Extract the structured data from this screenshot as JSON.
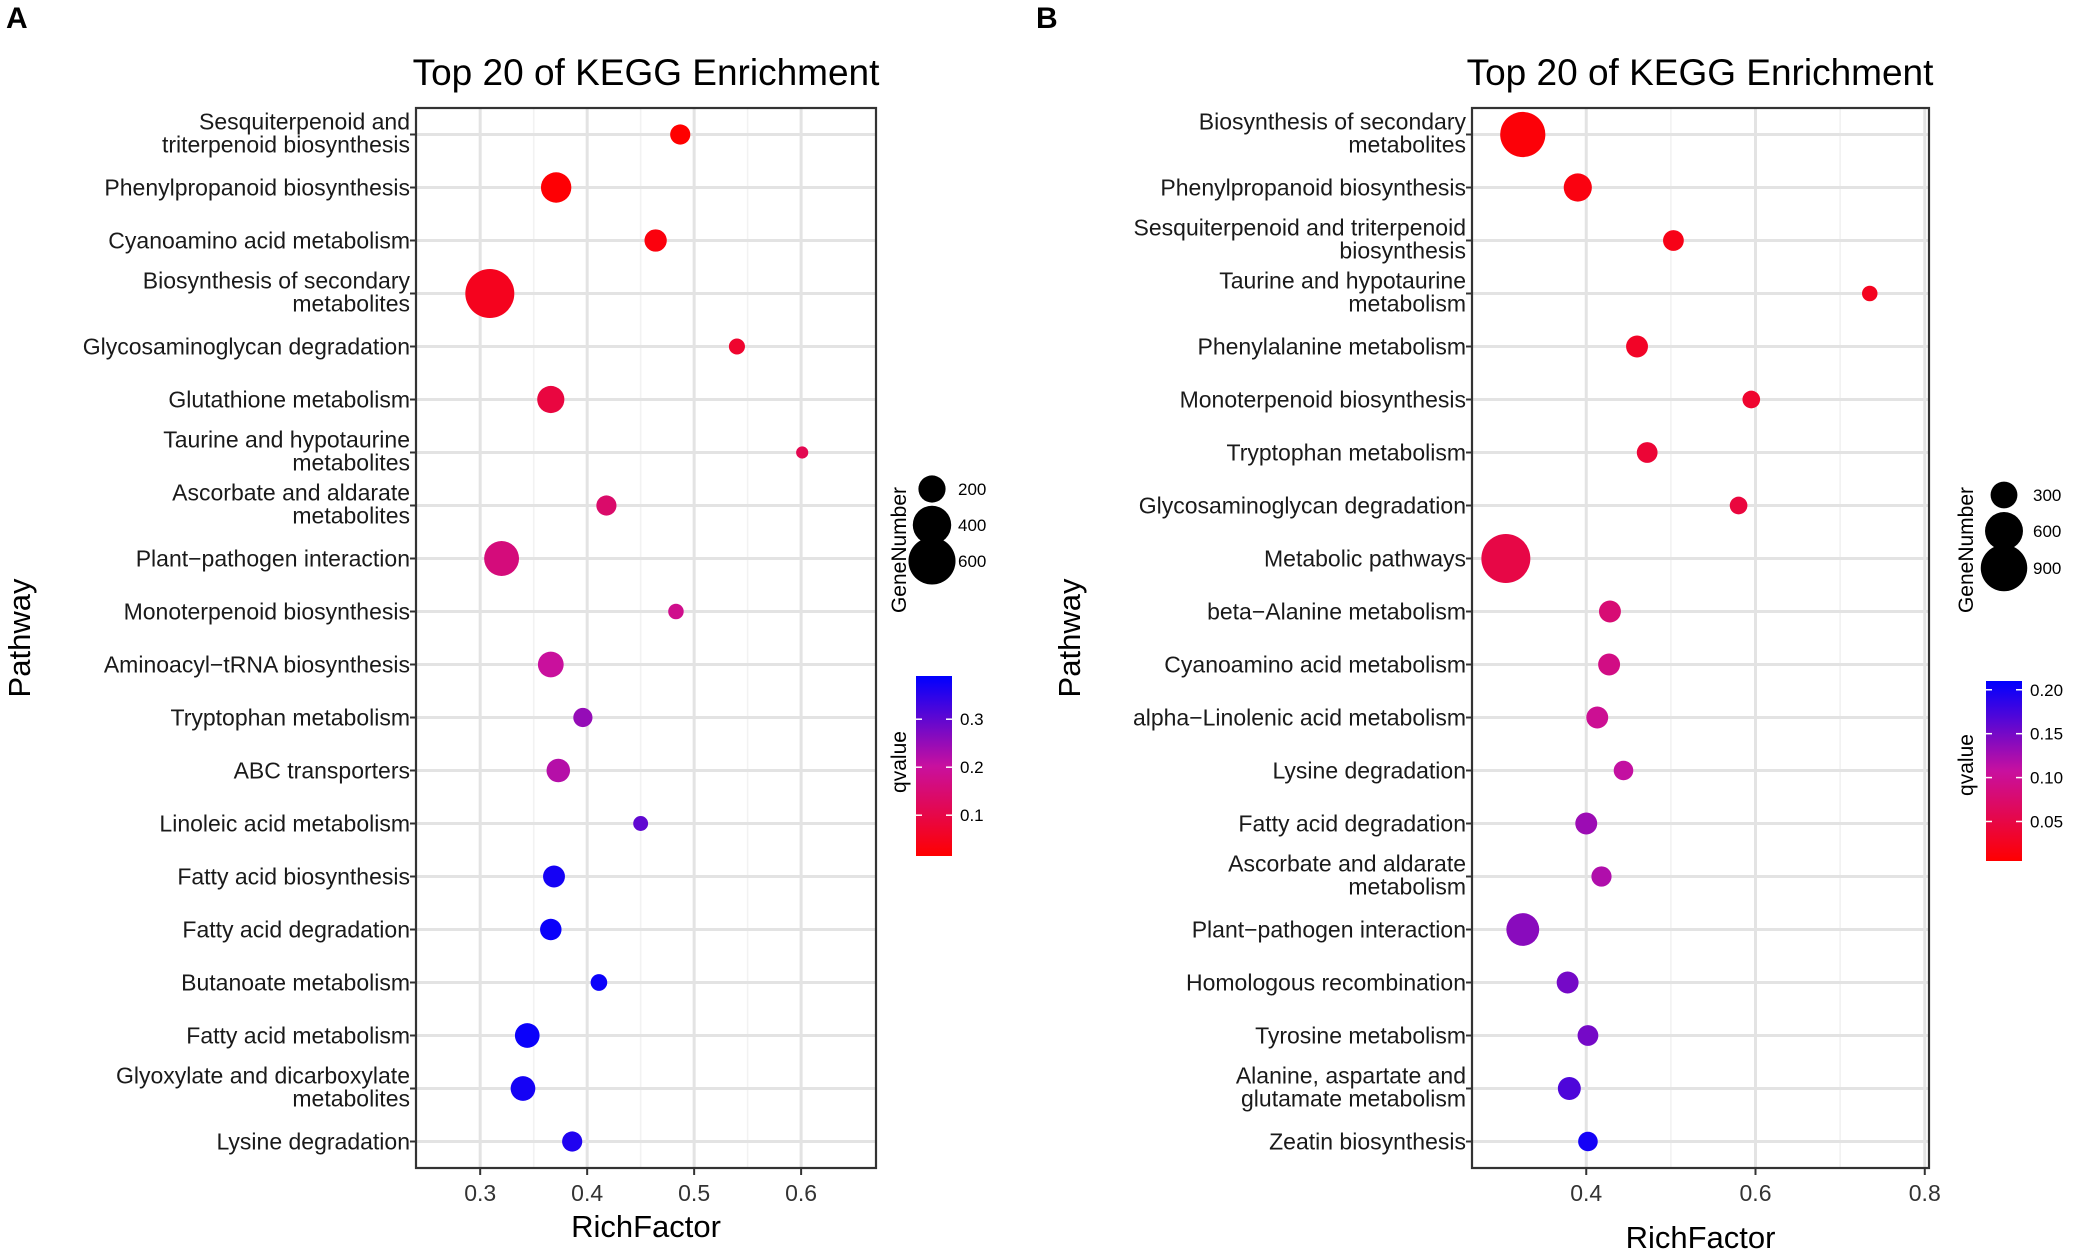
{
  "chart_data": [
    {
      "panel": "A",
      "type": "scatter",
      "title": "Top 20 of KEGG Enrichment",
      "xlabel": "RichFactor",
      "ylabel": "Pathway",
      "xlim": [
        0.24,
        0.67
      ],
      "xticks": [
        0.3,
        0.4,
        0.5,
        0.6
      ],
      "xtick_labels": [
        "0.3",
        "0.4",
        "0.5",
        "0.6"
      ],
      "points": [
        {
          "pathway": [
            "Sesquiterpenoid and",
            "triterpenoid biosynthesis"
          ],
          "rich": 0.487,
          "genes": 110,
          "q": 0.015
        },
        {
          "pathway": [
            "Phenylpropanoid biosynthesis"
          ],
          "rich": 0.371,
          "genes": 250,
          "q": 0.02
        },
        {
          "pathway": [
            "Cyanoamino acid metabolism"
          ],
          "rich": 0.464,
          "genes": 135,
          "q": 0.03
        },
        {
          "pathway": [
            "Biosynthesis of secondary",
            "metabolites"
          ],
          "rich": 0.309,
          "genes": 650,
          "q": 0.05
        },
        {
          "pathway": [
            "Glycosaminoglycan degradation"
          ],
          "rich": 0.54,
          "genes": 70,
          "q": 0.07
        },
        {
          "pathway": [
            "Glutathione metabolism"
          ],
          "rich": 0.366,
          "genes": 200,
          "q": 0.09
        },
        {
          "pathway": [
            "Taurine and hypotaurine",
            "metabolites"
          ],
          "rich": 0.601,
          "genes": 40,
          "q": 0.11
        },
        {
          "pathway": [
            "Ascorbate and aldarate",
            "metabolites"
          ],
          "rich": 0.418,
          "genes": 110,
          "q": 0.14
        },
        {
          "pathway": [
            "Plant−pathogen interaction"
          ],
          "rich": 0.32,
          "genes": 330,
          "q": 0.16
        },
        {
          "pathway": [
            "Monoterpenoid biosynthesis"
          ],
          "rich": 0.483,
          "genes": 65,
          "q": 0.18
        },
        {
          "pathway": [
            "Aminoacyl−tRNA biosynthesis"
          ],
          "rich": 0.366,
          "genes": 180,
          "q": 0.2
        },
        {
          "pathway": [
            "Tryptophan metabolism"
          ],
          "rich": 0.396,
          "genes": 100,
          "q": 0.25
        },
        {
          "pathway": [
            "ABC transporters"
          ],
          "rich": 0.373,
          "genes": 150,
          "q": 0.22
        },
        {
          "pathway": [
            "Linoleic acid metabolism"
          ],
          "rich": 0.45,
          "genes": 60,
          "q": 0.3
        },
        {
          "pathway": [
            "Fatty acid biosynthesis"
          ],
          "rich": 0.369,
          "genes": 130,
          "q": 0.37
        },
        {
          "pathway": [
            "Fatty acid degradation"
          ],
          "rich": 0.366,
          "genes": 125,
          "q": 0.38
        },
        {
          "pathway": [
            "Butanoate metabolism"
          ],
          "rich": 0.411,
          "genes": 75,
          "q": 0.38
        },
        {
          "pathway": [
            "Fatty acid metabolism"
          ],
          "rich": 0.344,
          "genes": 165,
          "q": 0.38
        },
        {
          "pathway": [
            "Glyoxylate and dicarboxylate",
            "metabolites"
          ],
          "rich": 0.34,
          "genes": 165,
          "q": 0.37
        },
        {
          "pathway": [
            "Lysine degradation"
          ],
          "rich": 0.386,
          "genes": 110,
          "q": 0.36
        }
      ],
      "size_legend": {
        "title": "GeneNumber",
        "values": [
          200,
          400,
          600
        ],
        "labels": [
          "200",
          "400",
          "600"
        ],
        "max": 650
      },
      "color_legend": {
        "title": "qvalue",
        "min": 0.015,
        "max": 0.39,
        "ticks": [
          0.1,
          0.2,
          0.3
        ],
        "tick_labels": [
          "0.1",
          "0.2",
          "0.3"
        ]
      }
    },
    {
      "panel": "B",
      "type": "scatter",
      "title": "Top 20 of KEGG Enrichment",
      "xlabel": "RichFactor",
      "ylabel": "Pathway",
      "xlim": [
        0.265,
        0.805
      ],
      "xticks": [
        0.4,
        0.6,
        0.8
      ],
      "xtick_labels": [
        "0.4",
        "0.6",
        "0.8"
      ],
      "points": [
        {
          "pathway": [
            "Biosynthesis of secondary",
            "metabolites"
          ],
          "rich": 0.325,
          "genes": 850,
          "q": 0.01
        },
        {
          "pathway": [
            "Phenylpropanoid biosynthesis"
          ],
          "rich": 0.39,
          "genes": 330,
          "q": 0.015
        },
        {
          "pathway": [
            "Sesquiterpenoid and triterpenoid",
            "biosynthesis"
          ],
          "rich": 0.503,
          "genes": 180,
          "q": 0.02
        },
        {
          "pathway": [
            "Taurine and hypotaurine",
            "metabolism"
          ],
          "rich": 0.735,
          "genes": 100,
          "q": 0.025
        },
        {
          "pathway": [
            "Phenylalanine metabolism"
          ],
          "rich": 0.46,
          "genes": 200,
          "q": 0.03
        },
        {
          "pathway": [
            "Monoterpenoid biosynthesis"
          ],
          "rich": 0.595,
          "genes": 130,
          "q": 0.035
        },
        {
          "pathway": [
            "Tryptophan metabolism"
          ],
          "rich": 0.472,
          "genes": 180,
          "q": 0.04
        },
        {
          "pathway": [
            "Glycosaminoglycan degradation"
          ],
          "rich": 0.58,
          "genes": 130,
          "q": 0.045
        },
        {
          "pathway": [
            "Metabolic pathways"
          ],
          "rich": 0.305,
          "genes": 1000,
          "q": 0.05
        },
        {
          "pathway": [
            "beta−Alanine metabolism"
          ],
          "rich": 0.428,
          "genes": 200,
          "q": 0.08
        },
        {
          "pathway": [
            "Cyanoamino acid metabolism"
          ],
          "rich": 0.427,
          "genes": 200,
          "q": 0.09
        },
        {
          "pathway": [
            "alpha−Linolenic acid metabolism"
          ],
          "rich": 0.413,
          "genes": 200,
          "q": 0.1
        },
        {
          "pathway": [
            "Lysine degradation"
          ],
          "rich": 0.444,
          "genes": 160,
          "q": 0.11
        },
        {
          "pathway": [
            "Fatty acid degradation"
          ],
          "rich": 0.4,
          "genes": 200,
          "q": 0.13
        },
        {
          "pathway": [
            "Ascorbate and aldarate",
            "metabolism"
          ],
          "rich": 0.418,
          "genes": 170,
          "q": 0.12
        },
        {
          "pathway": [
            "Plant−pathogen interaction"
          ],
          "rich": 0.325,
          "genes": 450,
          "q": 0.14
        },
        {
          "pathway": [
            "Homologous recombination"
          ],
          "rich": 0.378,
          "genes": 200,
          "q": 0.15
        },
        {
          "pathway": [
            "Tyrosine metabolism"
          ],
          "rich": 0.402,
          "genes": 180,
          "q": 0.15
        },
        {
          "pathway": [
            "Alanine, aspartate and",
            "glutamate metabolism"
          ],
          "rich": 0.38,
          "genes": 220,
          "q": 0.17
        },
        {
          "pathway": [
            "Zeatin biosynthesis"
          ],
          "rich": 0.402,
          "genes": 160,
          "q": 0.2
        }
      ],
      "size_legend": {
        "title": "GeneNumber",
        "values": [
          300,
          600,
          900
        ],
        "labels": [
          "300",
          "600",
          "900"
        ],
        "max": 1000
      },
      "color_legend": {
        "title": "qvalue",
        "min": 0.005,
        "max": 0.21,
        "ticks": [
          0.05,
          0.1,
          0.15,
          0.2
        ],
        "tick_labels": [
          "0.05",
          "0.10",
          "0.15",
          "0.20"
        ]
      }
    }
  ]
}
